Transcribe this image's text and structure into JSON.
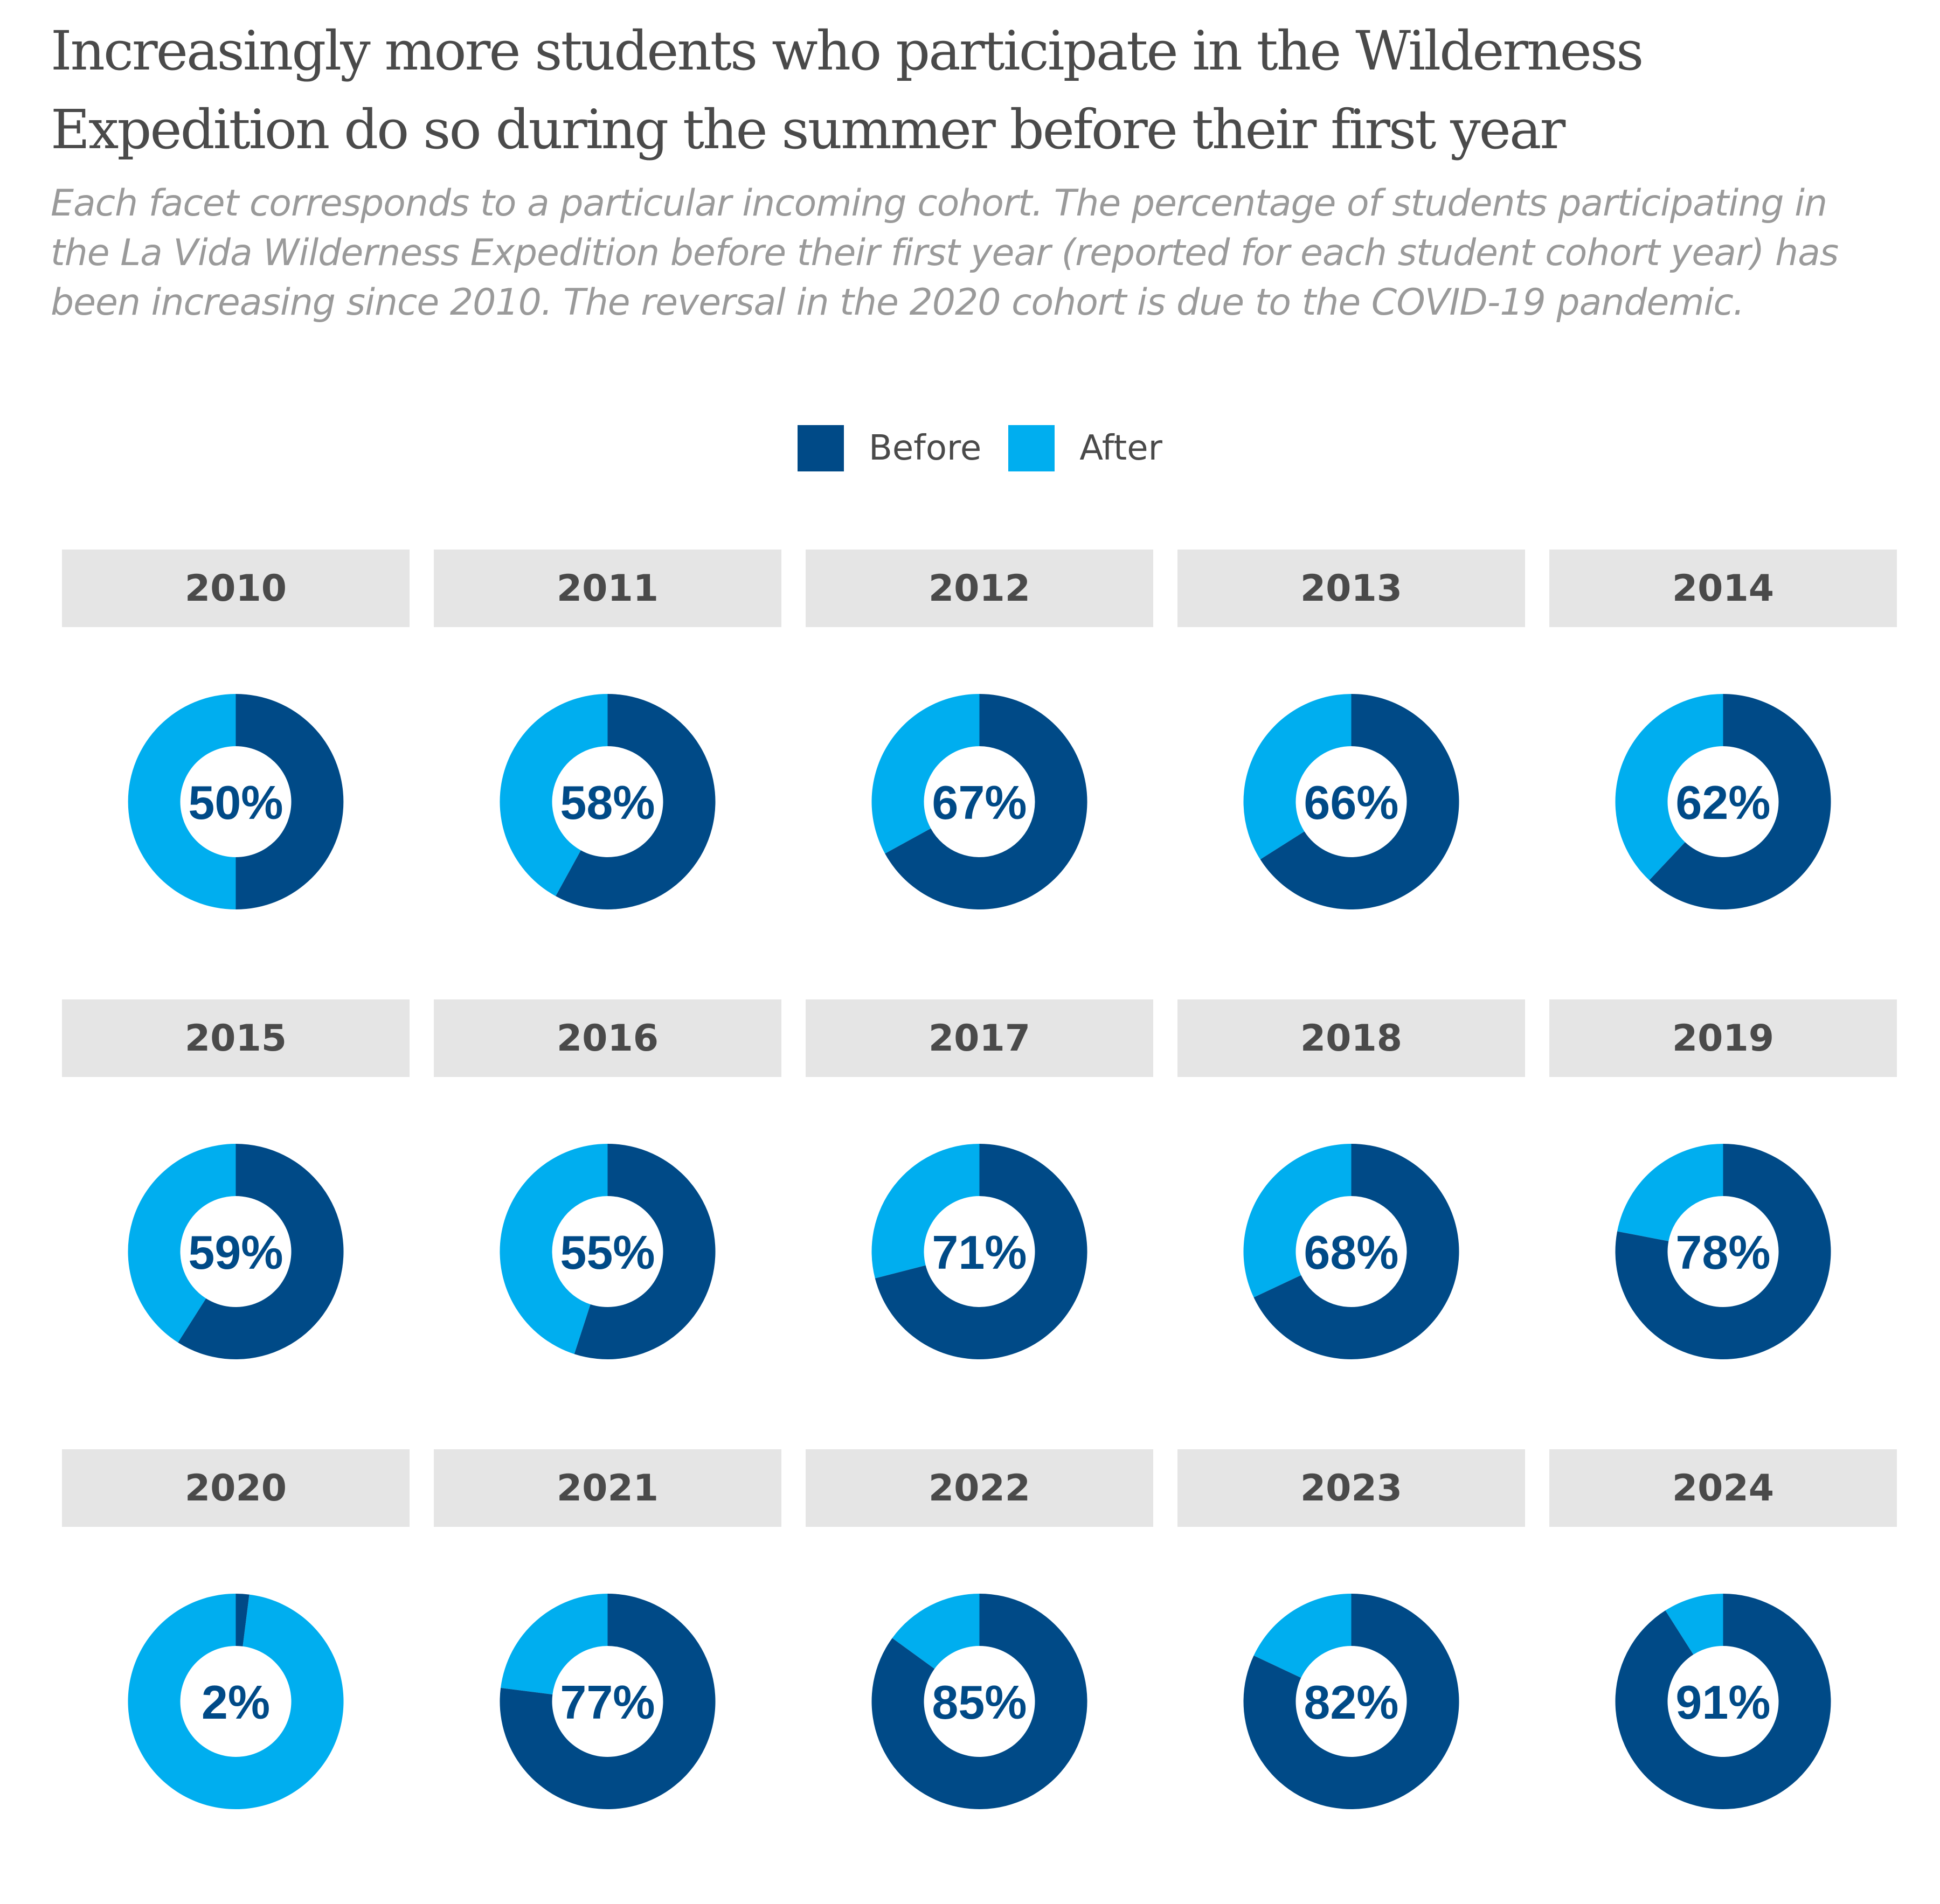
{
  "chart_data": {
    "type": "pie",
    "title": "Increasingly more students who participate in the Wilderness Expedition do so during the summer before their first year",
    "subtitle": "Each facet corresponds to a particular incoming cohort. The percentage of students participating in the La Vida Wilderness Expedition before their first year (reported for each student cohort year) has been increasing since 2010. The reversal in the 2020 cohort is due to the COVID-19 pandemic.",
    "legend": {
      "position": "top-center",
      "items": [
        {
          "name": "Before",
          "color": "#004a87"
        },
        {
          "name": "After",
          "color": "#00aeef"
        }
      ]
    },
    "facets": [
      {
        "year": "2010",
        "before": 50,
        "label": "50%"
      },
      {
        "year": "2011",
        "before": 58,
        "label": "58%"
      },
      {
        "year": "2012",
        "before": 67,
        "label": "67%"
      },
      {
        "year": "2013",
        "before": 66,
        "label": "66%"
      },
      {
        "year": "2014",
        "before": 62,
        "label": "62%"
      },
      {
        "year": "2015",
        "before": 59,
        "label": "59%"
      },
      {
        "year": "2016",
        "before": 55,
        "label": "55%"
      },
      {
        "year": "2017",
        "before": 71,
        "label": "71%"
      },
      {
        "year": "2018",
        "before": 68,
        "label": "68%"
      },
      {
        "year": "2019",
        "before": 78,
        "label": "78%"
      },
      {
        "year": "2020",
        "before": 2,
        "label": "2%"
      },
      {
        "year": "2021",
        "before": 77,
        "label": "77%"
      },
      {
        "year": "2022",
        "before": 85,
        "label": "85%"
      },
      {
        "year": "2023",
        "before": 82,
        "label": "82%"
      },
      {
        "year": "2024",
        "before": 91,
        "label": "91%"
      }
    ]
  }
}
